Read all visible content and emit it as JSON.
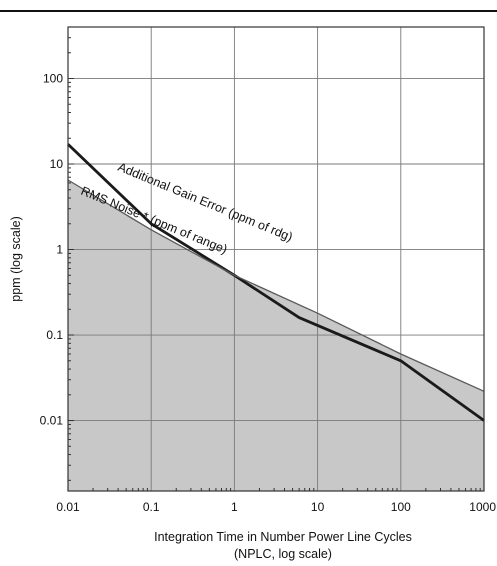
{
  "chart_data": {
    "type": "line",
    "x_scale": "log",
    "y_scale": "log",
    "xlim": [
      0.01,
      1000
    ],
    "ylim": [
      0.0015,
      400
    ],
    "grid": true,
    "x_ticks": [
      0.01,
      0.1,
      1,
      10,
      100,
      1000
    ],
    "x_tick_labels": [
      "0.01",
      "0.1",
      "1",
      "10",
      "100",
      "1000"
    ],
    "y_ticks": [
      0.01,
      0.1,
      1,
      10,
      100
    ],
    "y_tick_labels": [
      "0.01",
      "0.1",
      "1",
      "10",
      "100"
    ],
    "ylabel": "ppm (log scale)",
    "xlabel_line1": "Integration Time in Number Power Line Cycles",
    "xlabel_line2": "(NPLC, log scale)",
    "series": [
      {
        "name": "Additional Gain Error (ppm of rdg)",
        "style": "line",
        "color": "#1a1a1a",
        "x": [
          0.01,
          0.1,
          1,
          6,
          100,
          1000
        ],
        "y": [
          17,
          2.0,
          0.5,
          0.16,
          0.05,
          0.01
        ]
      },
      {
        "name": "RMS Noise * (ppm of range)",
        "style": "filled-area",
        "color": "#5a5a5a",
        "fill": "#c8c8c8",
        "x": [
          0.01,
          0.1,
          1,
          10,
          100,
          1000
        ],
        "y": [
          6.5,
          1.7,
          0.5,
          0.18,
          0.06,
          0.022
        ]
      }
    ],
    "annotations": [
      {
        "text": "Additional Gain Error (ppm of rdg)",
        "series": 0
      },
      {
        "text": "RMS Noise * (ppm of range)",
        "series": 1
      }
    ]
  }
}
